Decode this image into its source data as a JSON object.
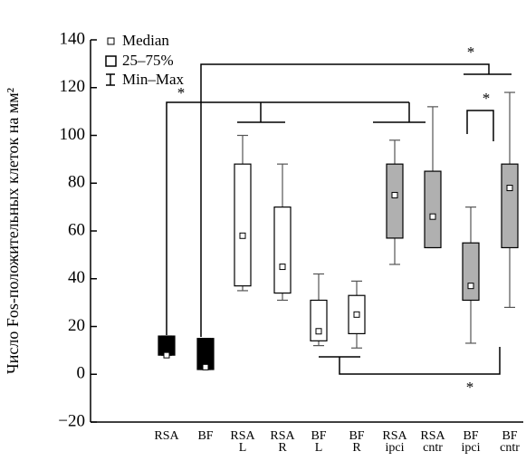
{
  "chart_data": {
    "type": "box",
    "y_label": "Число Fos-положительных клеток на мм²",
    "categories": [
      [
        "RSA"
      ],
      [
        "BF"
      ],
      [
        "RSA",
        "L"
      ],
      [
        "RSA",
        "R"
      ],
      [
        "BF",
        "L"
      ],
      [
        "BF",
        "R"
      ],
      [
        "RSA",
        "ipci"
      ],
      [
        "RSA",
        "cntr"
      ],
      [
        "BF",
        "ipci"
      ],
      [
        "BF",
        "cntr"
      ]
    ],
    "min": [
      8,
      2,
      35,
      31,
      12,
      11,
      46,
      53,
      13,
      28
    ],
    "q1": [
      8,
      2,
      37,
      34,
      14,
      17,
      57,
      53,
      31,
      53
    ],
    "median": [
      8,
      3,
      58,
      45,
      18,
      25,
      75,
      66,
      37,
      78
    ],
    "q3": [
      16,
      15,
      88,
      70,
      31,
      33,
      88,
      85,
      55,
      88
    ],
    "max": [
      16,
      15,
      100,
      88,
      42,
      39,
      98,
      112,
      70,
      118
    ],
    "colors": [
      "#000000",
      "#000000",
      "#ffffff",
      "#ffffff",
      "#ffffff",
      "#ffffff",
      "#b0b0b0",
      "#b0b0b0",
      "#b0b0b0",
      "#b0b0b0"
    ],
    "ylim": [
      -20,
      140
    ],
    "yticks": [
      {
        "value": -20,
        "label": "−20"
      },
      0,
      20,
      40,
      60,
      80,
      100,
      120,
      140
    ],
    "legend": [
      "Median",
      "25–75%",
      "Min–Max"
    ],
    "annotations": [
      "*",
      "*",
      "*",
      "*"
    ]
  }
}
